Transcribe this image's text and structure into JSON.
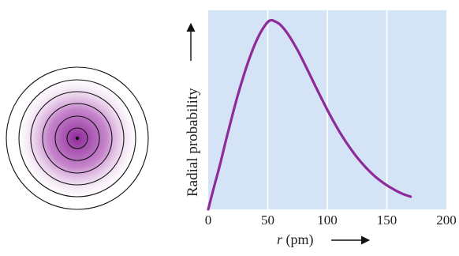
{
  "chart_data": {
    "type": "line",
    "title": "",
    "xlabel": "r (pm)",
    "xlabel_var": "r",
    "xlabel_unit": " (pm)",
    "ylabel": "Radial probability",
    "xlim": [
      0,
      200
    ],
    "ylim": [
      0,
      1
    ],
    "xticks": [
      0,
      50,
      100,
      150,
      200
    ],
    "xtick_labels": [
      "0",
      "50",
      "100",
      "150",
      "200"
    ],
    "grid": "vertical",
    "series": [
      {
        "x": [
          0,
          5,
          10,
          15,
          20,
          25,
          30,
          35,
          40,
          45,
          50,
          53,
          55,
          60,
          65,
          70,
          75,
          80,
          85,
          90,
          95,
          100,
          105,
          110,
          115,
          120,
          125,
          130,
          135,
          140,
          145,
          150,
          155,
          160,
          165,
          170
        ],
        "y": [
          0.0,
          0.116,
          0.227,
          0.349,
          0.466,
          0.577,
          0.676,
          0.765,
          0.84,
          0.899,
          0.941,
          0.95,
          0.947,
          0.93,
          0.897,
          0.852,
          0.8,
          0.742,
          0.681,
          0.619,
          0.559,
          0.5,
          0.444,
          0.392,
          0.345,
          0.301,
          0.261,
          0.226,
          0.194,
          0.166,
          0.142,
          0.121,
          0.103,
          0.087,
          0.074,
          0.064
        ],
        "color": "#8e2a99"
      }
    ],
    "colors": {
      "plot_bg": "#d4e3f5",
      "grid": "#ffffff",
      "curve": "#8e2a99",
      "orbital_core": "#8e2a99",
      "orbital_edge": "#ffffff"
    }
  },
  "orbital_diagram": {
    "shape": "concentric-circles",
    "ring_count": 5
  }
}
